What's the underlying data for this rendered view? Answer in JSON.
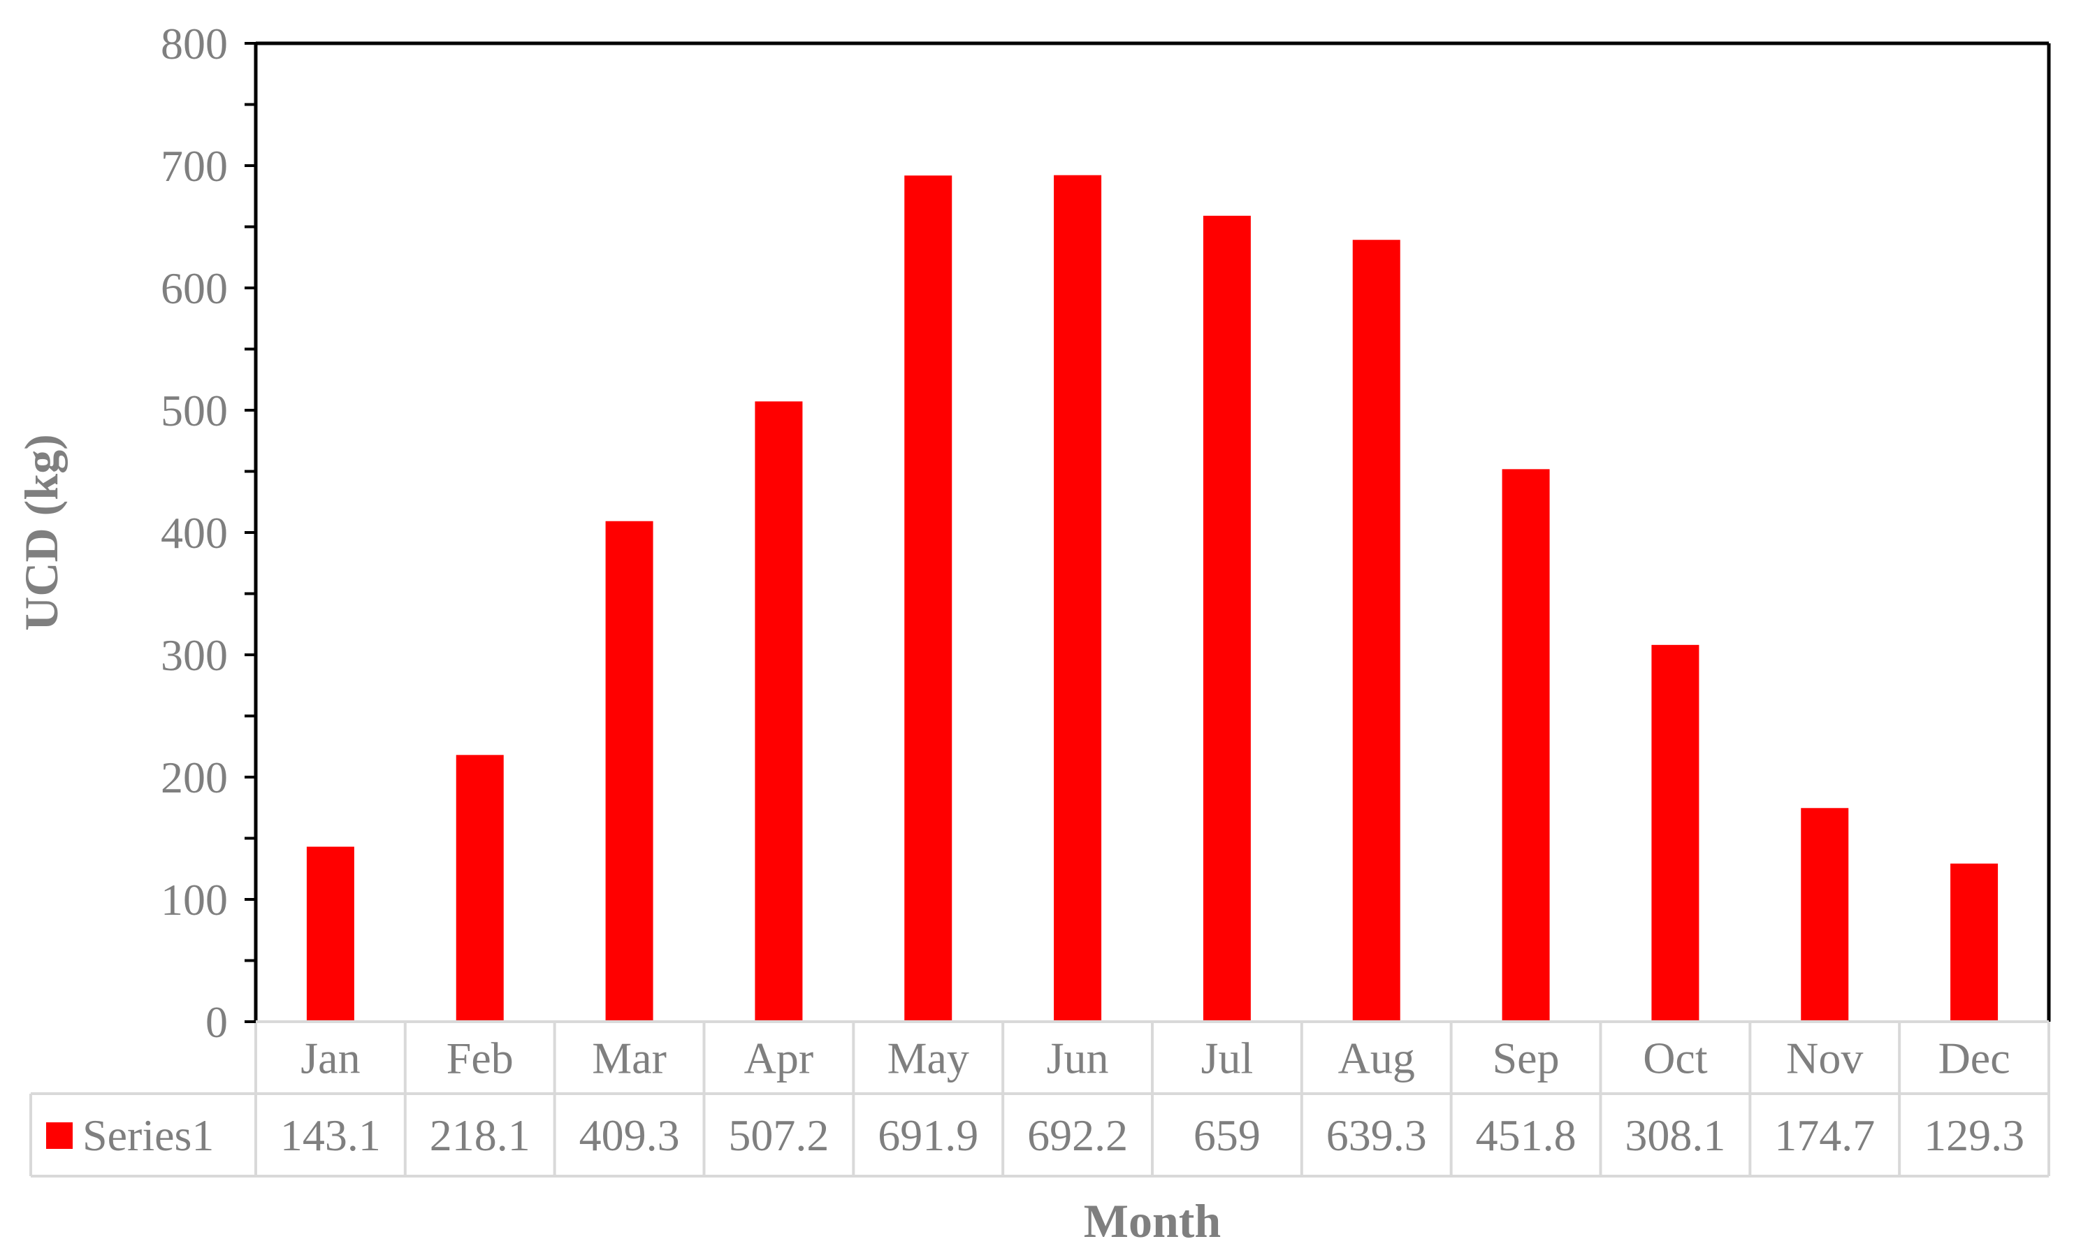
{
  "chart_data": {
    "type": "bar",
    "title": "",
    "xlabel": "Month",
    "ylabel": "UCD (kg)",
    "ylim": [
      0,
      800
    ],
    "yticks": [
      0,
      100,
      200,
      300,
      400,
      500,
      600,
      700,
      800
    ],
    "grid": false,
    "legend": "data-table",
    "categories": [
      "Jan",
      "Feb",
      "Mar",
      "Apr",
      "May",
      "Jun",
      "Jul",
      "Aug",
      "Sep",
      "Oct",
      "Nov",
      "Dec"
    ],
    "series": [
      {
        "name": "Series1",
        "color": "#ff0000",
        "values": [
          143.1,
          218.1,
          409.3,
          507.2,
          691.9,
          692.2,
          659,
          639.3,
          451.8,
          308.1,
          174.7,
          129.3
        ],
        "value_labels": [
          "143.1",
          "218.1",
          "409.3",
          "507.2",
          "691.9",
          "692.2",
          "659",
          "639.3",
          "451.8",
          "308.1",
          "174.7",
          "129.3"
        ]
      }
    ]
  }
}
